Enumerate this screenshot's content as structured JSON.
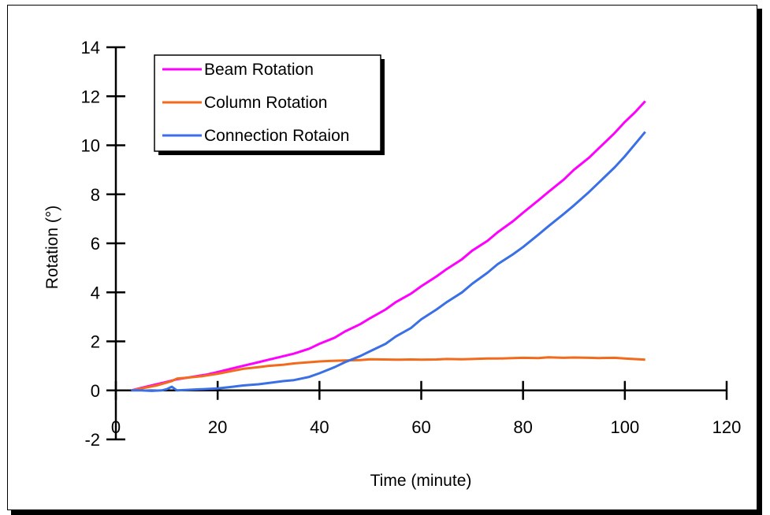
{
  "chart_data": {
    "type": "line",
    "title": "",
    "xlabel": "Time (minute)",
    "ylabel": "Rotation (°)",
    "xlim": [
      0,
      120
    ],
    "ylim": [
      -2,
      14
    ],
    "x_ticks": [
      0,
      20,
      40,
      60,
      80,
      100,
      120
    ],
    "y_ticks": [
      -2,
      0,
      2,
      4,
      6,
      8,
      10,
      12,
      14
    ],
    "x_tick_labels": [
      "0",
      "20",
      "40",
      "60",
      "80",
      "100",
      "120"
    ],
    "y_tick_labels": [
      "-2",
      "0",
      "2",
      "4",
      "6",
      "8",
      "10",
      "12",
      "14"
    ],
    "grid": false,
    "legend_position": "top-left",
    "series": [
      {
        "name": "Beam Rotation",
        "color": "#ff00ff",
        "x": [
          3,
          5,
          8,
          10,
          12,
          15,
          18,
          20,
          23,
          25,
          28,
          30,
          33,
          35,
          38,
          40,
          43,
          45,
          48,
          50,
          53,
          55,
          58,
          60,
          63,
          65,
          68,
          70,
          73,
          75,
          78,
          80,
          83,
          85,
          88,
          90,
          93,
          95,
          98,
          100,
          102,
          104
        ],
        "y": [
          0,
          0.1,
          0.25,
          0.35,
          0.45,
          0.55,
          0.65,
          0.75,
          0.9,
          1.0,
          1.15,
          1.25,
          1.4,
          1.5,
          1.7,
          1.9,
          2.15,
          2.4,
          2.7,
          2.95,
          3.3,
          3.6,
          3.95,
          4.25,
          4.65,
          4.95,
          5.35,
          5.7,
          6.1,
          6.45,
          6.9,
          7.25,
          7.75,
          8.1,
          8.6,
          9.0,
          9.5,
          9.9,
          10.5,
          10.95,
          11.35,
          11.8
        ]
      },
      {
        "name": "Column Rotation",
        "color": "#f26b1d",
        "x": [
          3,
          5,
          8,
          10,
          11,
          12,
          14,
          17,
          20,
          23,
          25,
          28,
          30,
          33,
          35,
          38,
          40,
          42,
          45,
          48,
          50,
          55,
          58,
          60,
          63,
          65,
          68,
          70,
          73,
          75,
          78,
          80,
          83,
          85,
          88,
          90,
          93,
          95,
          98,
          100,
          104
        ],
        "y": [
          0,
          0.08,
          0.2,
          0.32,
          0.38,
          0.48,
          0.52,
          0.58,
          0.68,
          0.8,
          0.88,
          0.95,
          1.0,
          1.05,
          1.1,
          1.15,
          1.18,
          1.2,
          1.22,
          1.24,
          1.27,
          1.25,
          1.26,
          1.25,
          1.26,
          1.28,
          1.27,
          1.28,
          1.3,
          1.3,
          1.32,
          1.33,
          1.32,
          1.35,
          1.33,
          1.34,
          1.33,
          1.32,
          1.33,
          1.3,
          1.25
        ]
      },
      {
        "name": "Connection Rotaion",
        "color": "#3b6fe6",
        "x": [
          3,
          5,
          7,
          9,
          10,
          11,
          12,
          14,
          17,
          20,
          23,
          25,
          28,
          30,
          33,
          35,
          38,
          40,
          43,
          45,
          48,
          50,
          53,
          55,
          58,
          60,
          63,
          65,
          68,
          70,
          73,
          75,
          78,
          80,
          83,
          85,
          88,
          90,
          93,
          95,
          98,
          100,
          102,
          104
        ],
        "y": [
          0,
          0,
          -0.02,
          0,
          0.05,
          0.15,
          0,
          0.02,
          0.05,
          0.08,
          0.15,
          0.2,
          0.25,
          0.3,
          0.38,
          0.42,
          0.55,
          0.7,
          0.95,
          1.15,
          1.4,
          1.6,
          1.9,
          2.2,
          2.55,
          2.9,
          3.3,
          3.6,
          4.0,
          4.35,
          4.8,
          5.15,
          5.55,
          5.85,
          6.35,
          6.7,
          7.2,
          7.55,
          8.1,
          8.5,
          9.1,
          9.55,
          10.05,
          10.55
        ]
      }
    ]
  }
}
